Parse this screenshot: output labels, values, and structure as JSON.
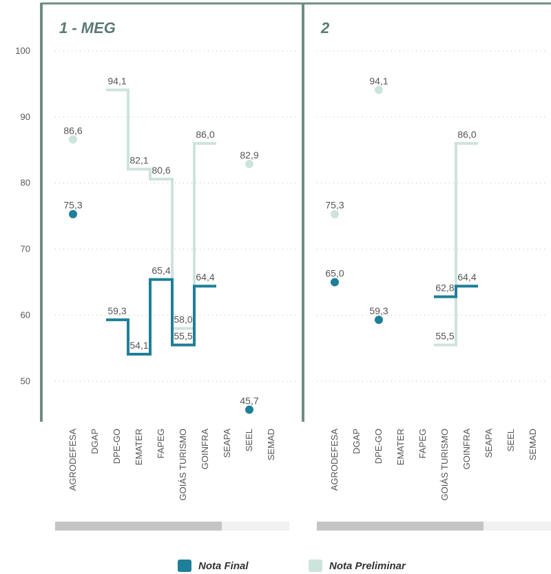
{
  "chart_data": {
    "type": "line",
    "categories": [
      "AGRODEFESA",
      "DGAP",
      "DPE-GO",
      "EMATER",
      "FAPEG",
      "GOIÁS TURISMO",
      "GOINFRA",
      "SEAPA",
      "SEEL",
      "SEMAD"
    ],
    "y_ticks": [
      "100",
      "90",
      "80",
      "70",
      "60",
      "50"
    ],
    "ylim": [
      42,
      105
    ],
    "grid": true,
    "legend_position": "bottom-center",
    "panels": [
      {
        "title": "1 - MEG",
        "series": [
          {
            "name": "Nota Final",
            "color": "#1e7f98",
            "values": [
              75.3,
              null,
              59.3,
              54.1,
              65.4,
              55.5,
              64.4,
              null,
              45.7,
              null
            ],
            "labels": [
              "75,3",
              "",
              "59,3",
              "54,1",
              "65,4",
              "55,5",
              "64,4",
              "",
              "45,7",
              ""
            ]
          },
          {
            "name": "Nota Preliminar",
            "color": "#cde3de",
            "values": [
              86.6,
              null,
              94.1,
              82.1,
              80.6,
              58.0,
              86.0,
              null,
              82.9,
              null
            ],
            "labels": [
              "86,6",
              "",
              "94,1",
              "82,1",
              "80,6",
              "58,0",
              "86,0",
              "",
              "82,9",
              ""
            ]
          }
        ]
      },
      {
        "title": "2",
        "series": [
          {
            "name": "Nota Final",
            "color": "#1e7f98",
            "values": [
              65.0,
              null,
              59.3,
              null,
              null,
              62.8,
              64.4,
              null,
              null,
              null
            ],
            "labels": [
              "65,0",
              "",
              "59,3",
              "",
              "",
              "62,8",
              "64,4",
              "",
              "",
              ""
            ]
          },
          {
            "name": "Nota Preliminar",
            "color": "#cde3de",
            "values": [
              75.3,
              null,
              94.1,
              null,
              null,
              55.5,
              86.0,
              null,
              null,
              null
            ],
            "labels": [
              "75,3",
              "",
              "94,1",
              "",
              "",
              "55,5",
              "86,0",
              "",
              "",
              ""
            ]
          }
        ]
      }
    ]
  },
  "legend": [
    {
      "label": "Nota Final",
      "color": "#1e7f98"
    },
    {
      "label": "Nota Preliminar",
      "color": "#cde3de"
    }
  ]
}
